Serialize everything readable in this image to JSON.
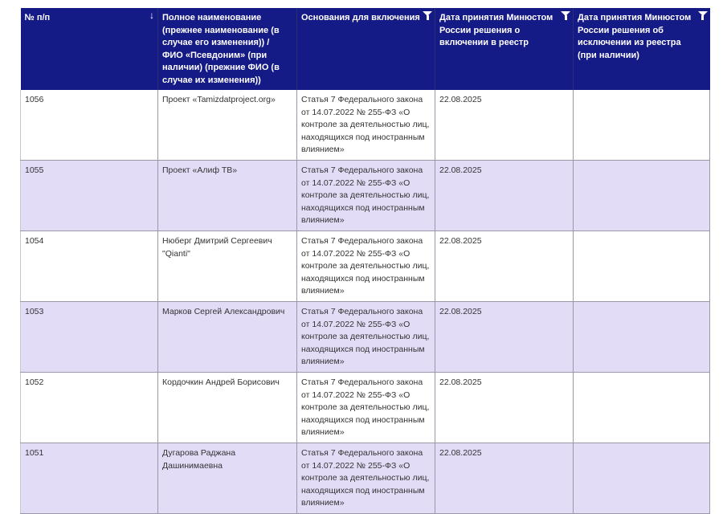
{
  "table": {
    "headers": [
      {
        "label": "№ п/п",
        "icon": "sort-down-arrow-icon"
      },
      {
        "label": "Полное наименование (прежнее наименование (в случае его изменения)) / ФИО «Псевдоним» (при наличии) (прежние ФИО (в случае их изменения))"
      },
      {
        "label": "Основания для включения",
        "icon": "filter-icon"
      },
      {
        "label": "Дата принятия Минюстом России решения о включении в реестр",
        "icon": "filter-icon"
      },
      {
        "label": "Дата принятия Минюстом России решения об исключении из реестра (при наличии)",
        "icon": "filter-icon"
      }
    ],
    "rows": [
      {
        "num": "1056",
        "name": "Проект «Tamizdatproject.org»",
        "basis": "Статья 7 Федерального закона от 14.07.2022 № 255-ФЗ «О контроле за деятельностью лиц, находящихся под иностранным влиянием»",
        "date_in": "22.08.2025",
        "date_out": ""
      },
      {
        "num": "1055",
        "name": "Проект «Алиф ТВ»",
        "basis": "Статья 7 Федерального закона от 14.07.2022 № 255-ФЗ «О контроле за деятельностью лиц, находящихся под иностранным влиянием»",
        "date_in": "22.08.2025",
        "date_out": ""
      },
      {
        "num": "1054",
        "name": "Нюберг Дмитрий Сергеевич \"Qianti\"",
        "basis": "Статья 7 Федерального закона от 14.07.2022 № 255-ФЗ «О контроле за деятельностью лиц, находящихся под иностранным влиянием»",
        "date_in": "22.08.2025",
        "date_out": ""
      },
      {
        "num": "1053",
        "name": "Марков Сергей Александрович",
        "basis": "Статья 7 Федерального закона от 14.07.2022 № 255-ФЗ «О контроле за деятельностью лиц, находящихся под иностранным влиянием»",
        "date_in": "22.08.2025",
        "date_out": ""
      },
      {
        "num": "1052",
        "name": "Кордочкин Андрей Борисович",
        "basis": "Статья 7 Федерального закона от 14.07.2022 № 255-ФЗ «О контроле за деятельностью лиц, находящихся под иностранным влиянием»",
        "date_in": "22.08.2025",
        "date_out": ""
      },
      {
        "num": "1051",
        "name": "Дугарова Раджана Дашинимаевна",
        "basis": "Статья 7 Федерального закона от 14.07.2022 № 255-ФЗ «О контроле за деятельностью лиц, находящихся под иностранным влиянием»",
        "date_in": "22.08.2025",
        "date_out": ""
      }
    ]
  },
  "colors": {
    "header_bg": "#141a86",
    "alt_row": "#e3dcf7"
  }
}
